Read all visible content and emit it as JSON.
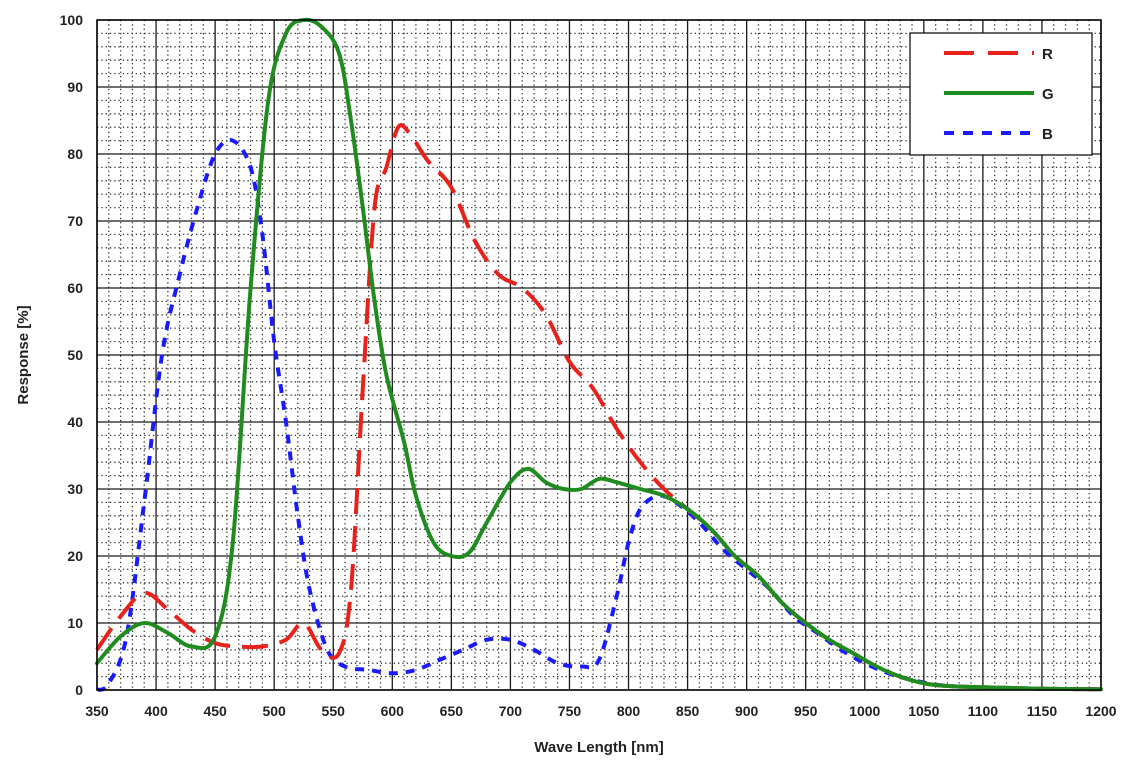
{
  "chart_data": {
    "type": "line",
    "xlabel": "Wave Length [nm]",
    "ylabel": "Response [%]",
    "xlim": [
      350,
      1200
    ],
    "ylim": [
      0,
      100
    ],
    "x_ticks": [
      "350",
      "400",
      "450",
      "500",
      "550",
      "600",
      "650",
      "700",
      "750",
      "800",
      "850",
      "900",
      "950",
      "1000",
      "1050",
      "1100",
      "1150",
      "1200"
    ],
    "y_ticks": [
      "0",
      "10",
      "20",
      "30",
      "40",
      "50",
      "60",
      "70",
      "80",
      "90",
      "100"
    ],
    "grid": true,
    "legend_position": "top-right",
    "series": [
      {
        "name": "R",
        "color": "#e8211b",
        "style": "dash-long",
        "points": [
          [
            350,
            6
          ],
          [
            370,
            11
          ],
          [
            390,
            14.5
          ],
          [
            410,
            12
          ],
          [
            430,
            9
          ],
          [
            450,
            7
          ],
          [
            470,
            6.5
          ],
          [
            490,
            6.5
          ],
          [
            510,
            7.5
          ],
          [
            525,
            10
          ],
          [
            540,
            6
          ],
          [
            555,
            5.5
          ],
          [
            565,
            15
          ],
          [
            575,
            45
          ],
          [
            585,
            72
          ],
          [
            595,
            78
          ],
          [
            605,
            84
          ],
          [
            615,
            83
          ],
          [
            630,
            79
          ],
          [
            650,
            75
          ],
          [
            670,
            67
          ],
          [
            690,
            62
          ],
          [
            710,
            60
          ],
          [
            730,
            56
          ],
          [
            750,
            49
          ],
          [
            770,
            45
          ],
          [
            790,
            39
          ],
          [
            810,
            34
          ],
          [
            830,
            30
          ],
          [
            850,
            27
          ],
          [
            870,
            24
          ],
          [
            890,
            20
          ],
          [
            910,
            17
          ],
          [
            930,
            13
          ],
          [
            950,
            10
          ],
          [
            970,
            7.5
          ],
          [
            990,
            5.5
          ],
          [
            1010,
            3.5
          ],
          [
            1030,
            2
          ],
          [
            1050,
            1
          ],
          [
            1070,
            0.6
          ],
          [
            1100,
            0.4
          ],
          [
            1150,
            0.2
          ],
          [
            1200,
            0.1
          ]
        ]
      },
      {
        "name": "G",
        "color": "#1e8c1e",
        "style": "solid",
        "points": [
          [
            350,
            4
          ],
          [
            370,
            8
          ],
          [
            390,
            10
          ],
          [
            410,
            8.5
          ],
          [
            430,
            6.5
          ],
          [
            450,
            8
          ],
          [
            465,
            22
          ],
          [
            480,
            60
          ],
          [
            495,
            88
          ],
          [
            510,
            98
          ],
          [
            525,
            100
          ],
          [
            540,
            99
          ],
          [
            555,
            95
          ],
          [
            565,
            85
          ],
          [
            575,
            72
          ],
          [
            585,
            58
          ],
          [
            595,
            47
          ],
          [
            610,
            37
          ],
          [
            620,
            29
          ],
          [
            635,
            22
          ],
          [
            650,
            20
          ],
          [
            665,
            20.5
          ],
          [
            680,
            25
          ],
          [
            700,
            31
          ],
          [
            715,
            33
          ],
          [
            730,
            31
          ],
          [
            745,
            30
          ],
          [
            760,
            30
          ],
          [
            775,
            31.5
          ],
          [
            790,
            31
          ],
          [
            810,
            30
          ],
          [
            830,
            29
          ],
          [
            850,
            27
          ],
          [
            870,
            24
          ],
          [
            890,
            20
          ],
          [
            910,
            17
          ],
          [
            930,
            13
          ],
          [
            950,
            10
          ],
          [
            970,
            7.5
          ],
          [
            990,
            5.5
          ],
          [
            1010,
            3.5
          ],
          [
            1030,
            2
          ],
          [
            1050,
            1
          ],
          [
            1070,
            0.6
          ],
          [
            1100,
            0.4
          ],
          [
            1150,
            0.2
          ],
          [
            1200,
            0.1
          ]
        ]
      },
      {
        "name": "B",
        "color": "#1a1aff",
        "style": "dot",
        "points": [
          [
            350,
            0
          ],
          [
            360,
            1
          ],
          [
            375,
            8
          ],
          [
            390,
            28
          ],
          [
            405,
            50
          ],
          [
            420,
            62
          ],
          [
            435,
            72
          ],
          [
            450,
            80
          ],
          [
            465,
            82
          ],
          [
            480,
            78
          ],
          [
            490,
            68
          ],
          [
            500,
            52
          ],
          [
            510,
            40
          ],
          [
            520,
            26
          ],
          [
            530,
            15
          ],
          [
            545,
            6
          ],
          [
            560,
            3.5
          ],
          [
            580,
            3
          ],
          [
            600,
            2.5
          ],
          [
            620,
            3
          ],
          [
            640,
            4.5
          ],
          [
            660,
            6
          ],
          [
            680,
            7.5
          ],
          [
            700,
            7.5
          ],
          [
            720,
            6
          ],
          [
            740,
            4
          ],
          [
            760,
            3.5
          ],
          [
            775,
            4.5
          ],
          [
            790,
            14
          ],
          [
            800,
            22
          ],
          [
            810,
            27
          ],
          [
            825,
            29
          ],
          [
            840,
            28
          ],
          [
            860,
            25
          ],
          [
            880,
            21
          ],
          [
            900,
            18
          ],
          [
            920,
            15
          ],
          [
            940,
            11
          ],
          [
            960,
            8.5
          ],
          [
            980,
            6
          ],
          [
            1000,
            4
          ],
          [
            1020,
            2.5
          ],
          [
            1040,
            1.5
          ],
          [
            1060,
            0.8
          ],
          [
            1080,
            0.5
          ],
          [
            1100,
            0.4
          ],
          [
            1150,
            0.2
          ],
          [
            1200,
            0.1
          ]
        ]
      }
    ]
  }
}
